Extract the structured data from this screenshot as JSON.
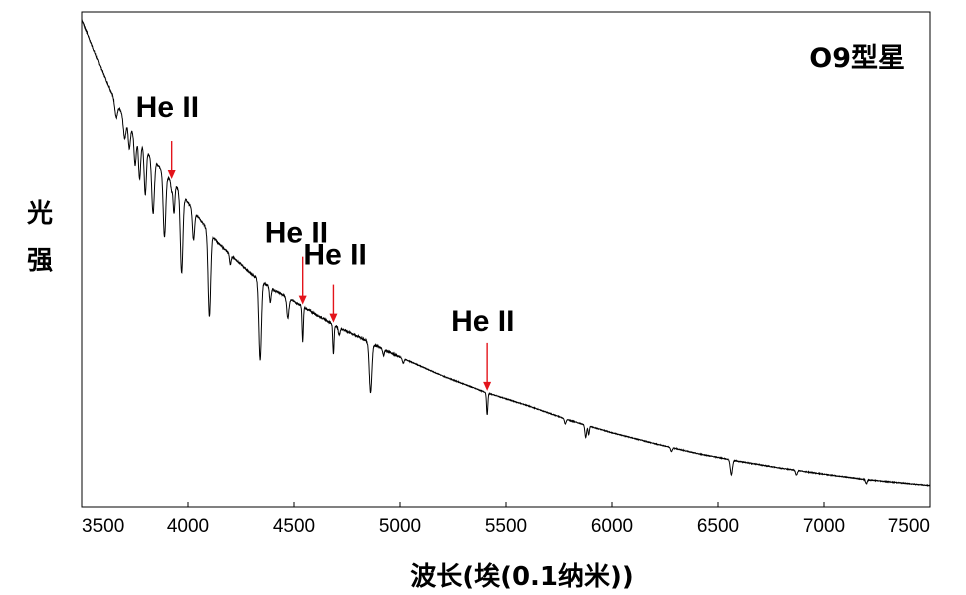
{
  "chart_data": {
    "type": "line",
    "title": "O9型星",
    "xlabel": "波长(埃(0.1纳米))",
    "ylabel": [
      "光",
      "强"
    ],
    "xlim": [
      3500,
      7500
    ],
    "ylim": [
      0,
      1
    ],
    "grid": false,
    "xticks": [
      3500,
      4000,
      4500,
      5000,
      5500,
      6000,
      6500,
      7000,
      7500
    ],
    "xtick_labels": [
      "3500",
      "4000",
      "4500",
      "5000",
      "5500",
      "6000",
      "6500",
      "7000",
      "7500"
    ],
    "line_color": "#000000",
    "arrow_color": "#e3141b",
    "continuum": [
      [
        3500,
        0.985
      ],
      [
        3550,
        0.93
      ],
      [
        3600,
        0.875
      ],
      [
        3650,
        0.825
      ],
      [
        3700,
        0.785
      ],
      [
        3750,
        0.75
      ],
      [
        3800,
        0.72
      ],
      [
        3850,
        0.695
      ],
      [
        3900,
        0.67
      ],
      [
        3950,
        0.645
      ],
      [
        4000,
        0.615
      ],
      [
        4050,
        0.585
      ],
      [
        4100,
        0.555
      ],
      [
        4150,
        0.53
      ],
      [
        4200,
        0.51
      ],
      [
        4300,
        0.47
      ],
      [
        4400,
        0.44
      ],
      [
        4500,
        0.415
      ],
      [
        4600,
        0.39
      ],
      [
        4700,
        0.365
      ],
      [
        4800,
        0.345
      ],
      [
        4900,
        0.323
      ],
      [
        5000,
        0.303
      ],
      [
        5200,
        0.265
      ],
      [
        5400,
        0.232
      ],
      [
        5600,
        0.205
      ],
      [
        5800,
        0.175
      ],
      [
        6000,
        0.15
      ],
      [
        6200,
        0.128
      ],
      [
        6400,
        0.108
      ],
      [
        6600,
        0.092
      ],
      [
        6800,
        0.078
      ],
      [
        7000,
        0.066
      ],
      [
        7200,
        0.055
      ],
      [
        7400,
        0.047
      ],
      [
        7500,
        0.043
      ]
    ],
    "absorption_lines": [
      {
        "wavelength": 3660,
        "depth": 0.03,
        "width": 6
      },
      {
        "wavelength": 3700,
        "depth": 0.04,
        "width": 6
      },
      {
        "wavelength": 3722,
        "depth": 0.045,
        "width": 5
      },
      {
        "wavelength": 3750,
        "depth": 0.06,
        "width": 5
      },
      {
        "wavelength": 3771,
        "depth": 0.075,
        "width": 5
      },
      {
        "wavelength": 3798,
        "depth": 0.09,
        "width": 5
      },
      {
        "wavelength": 3835,
        "depth": 0.11,
        "width": 6
      },
      {
        "wavelength": 3889,
        "depth": 0.13,
        "width": 6
      },
      {
        "wavelength": 3923,
        "depth": 0.02,
        "width": 4
      },
      {
        "wavelength": 3934,
        "depth": 0.06,
        "width": 4
      },
      {
        "wavelength": 3970,
        "depth": 0.16,
        "width": 6
      },
      {
        "wavelength": 4026,
        "depth": 0.06,
        "width": 5
      },
      {
        "wavelength": 4101,
        "depth": 0.17,
        "width": 6
      },
      {
        "wavelength": 4200,
        "depth": 0.02,
        "width": 4
      },
      {
        "wavelength": 4340,
        "depth": 0.16,
        "width": 6
      },
      {
        "wavelength": 4388,
        "depth": 0.03,
        "width": 4
      },
      {
        "wavelength": 4471,
        "depth": 0.04,
        "width": 5
      },
      {
        "wavelength": 4541,
        "depth": 0.07,
        "width": 3
      },
      {
        "wavelength": 4686,
        "depth": 0.06,
        "width": 3
      },
      {
        "wavelength": 4713,
        "depth": 0.015,
        "width": 4
      },
      {
        "wavelength": 4861,
        "depth": 0.1,
        "width": 6
      },
      {
        "wavelength": 4922,
        "depth": 0.012,
        "width": 4
      },
      {
        "wavelength": 5015,
        "depth": 0.01,
        "width": 4
      },
      {
        "wavelength": 5411,
        "depth": 0.045,
        "width": 3
      },
      {
        "wavelength": 5780,
        "depth": 0.01,
        "width": 4
      },
      {
        "wavelength": 5876,
        "depth": 0.025,
        "width": 4
      },
      {
        "wavelength": 5890,
        "depth": 0.018,
        "width": 3
      },
      {
        "wavelength": 6280,
        "depth": 0.008,
        "width": 4
      },
      {
        "wavelength": 6563,
        "depth": 0.03,
        "width": 5
      },
      {
        "wavelength": 6870,
        "depth": 0.01,
        "width": 4
      },
      {
        "wavelength": 7200,
        "depth": 0.008,
        "width": 4
      }
    ],
    "annotations": [
      {
        "text": "He II",
        "wavelength": 3923
      },
      {
        "text": "He II",
        "wavelength": 4541
      },
      {
        "text": "He II",
        "wavelength": 4686
      },
      {
        "text": "He II",
        "wavelength": 5411
      }
    ]
  }
}
